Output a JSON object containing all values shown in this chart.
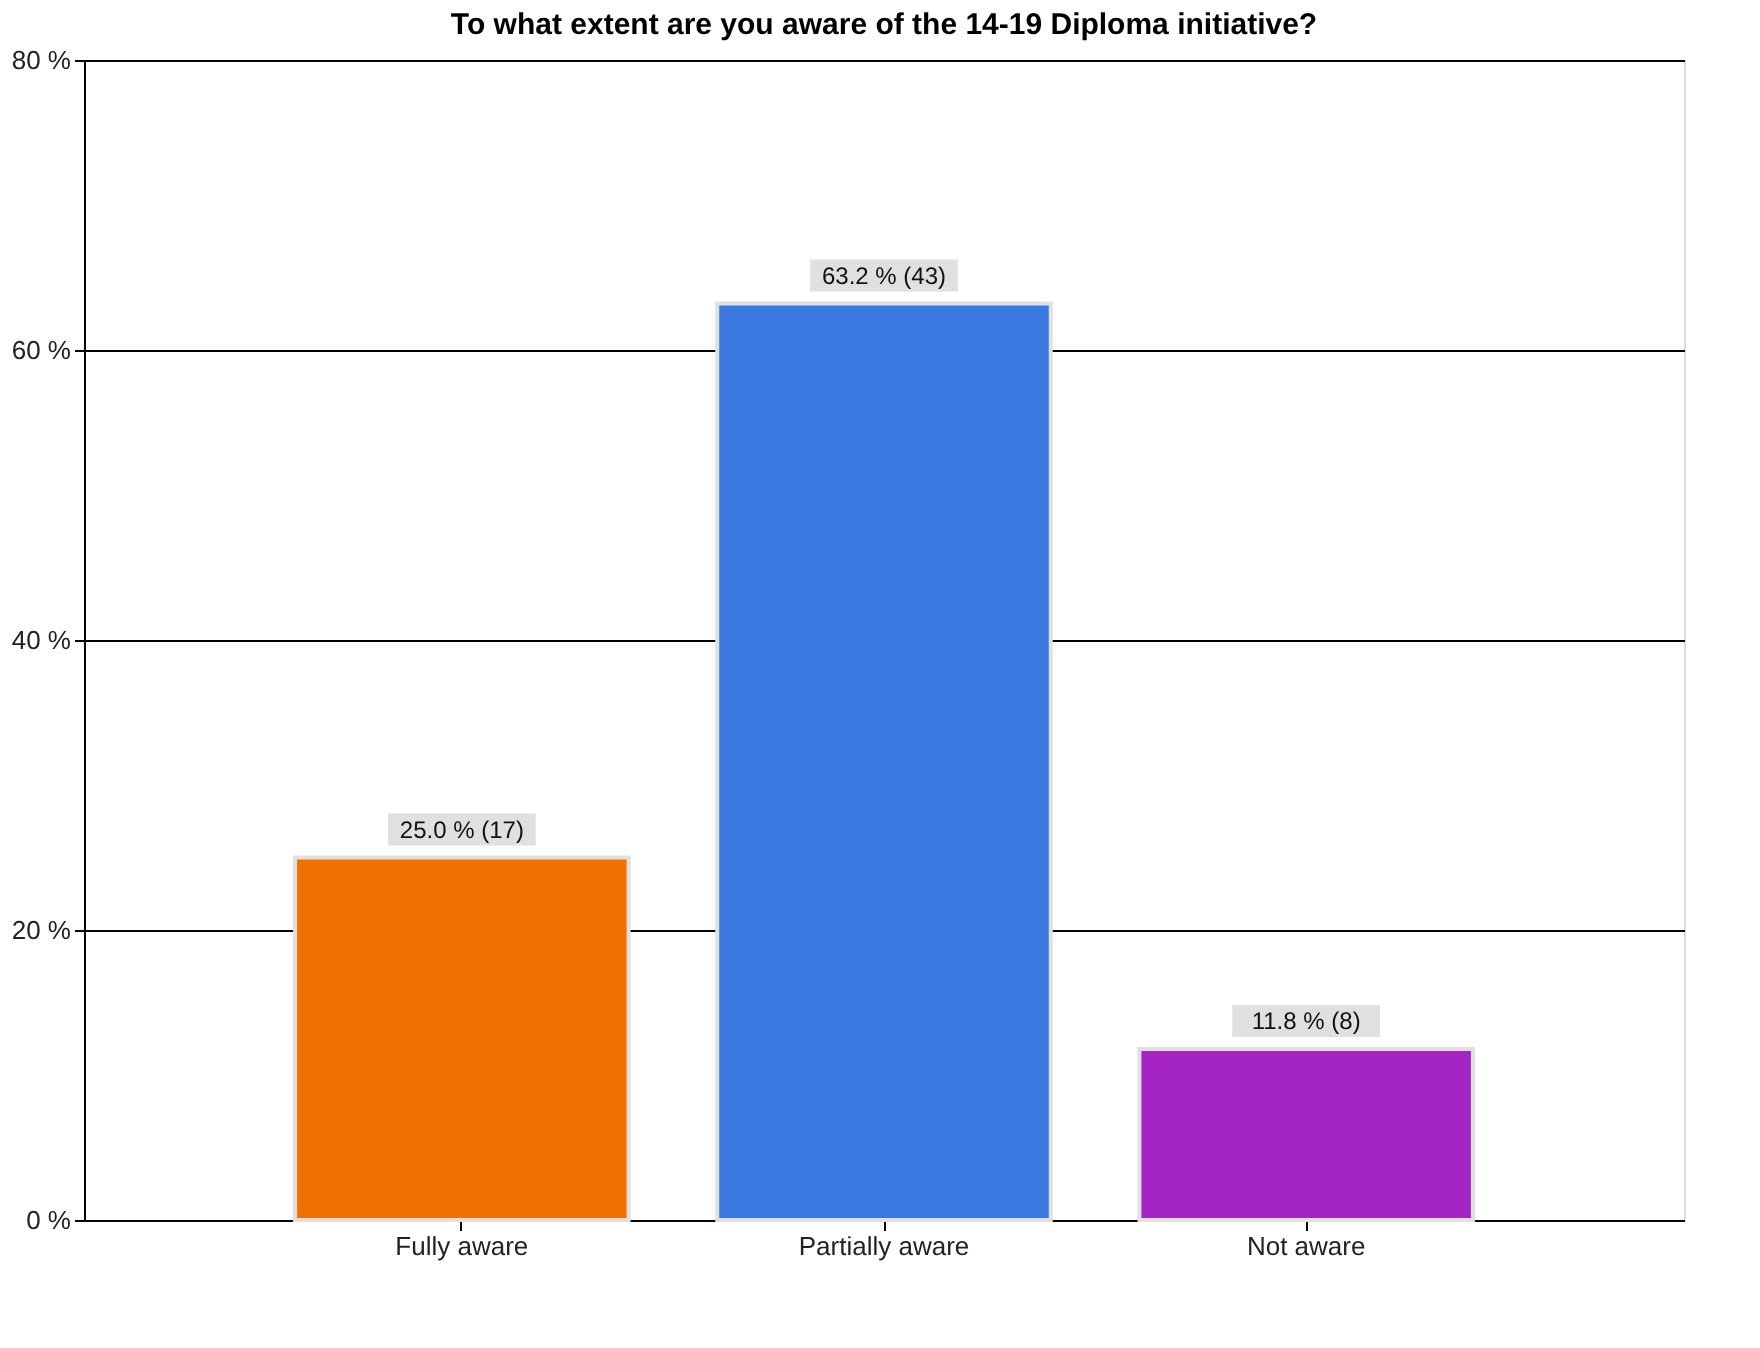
{
  "chart_data": {
    "type": "bar",
    "title": "To what extent are you aware of the 14-19 Diploma initiative?",
    "categories": [
      "Fully aware",
      "Partially aware",
      "Not aware"
    ],
    "values": [
      25.0,
      63.2,
      11.8
    ],
    "colors": [
      "#f07000",
      "#3a78e0",
      "#a424c4"
    ],
    "value_labels": [
      "25.0 % (17)",
      "63.2 % (43)",
      "11.8 % (8)"
    ],
    "ylim": [
      0,
      80
    ],
    "yticks": [
      {
        "value": 0,
        "label": "0 %"
      },
      {
        "value": 20,
        "label": "20 %"
      },
      {
        "value": 40,
        "label": "40 %"
      },
      {
        "value": 60,
        "label": "60 %"
      },
      {
        "value": 80,
        "label": "80 %"
      }
    ],
    "grid": "y",
    "legend": false
  }
}
